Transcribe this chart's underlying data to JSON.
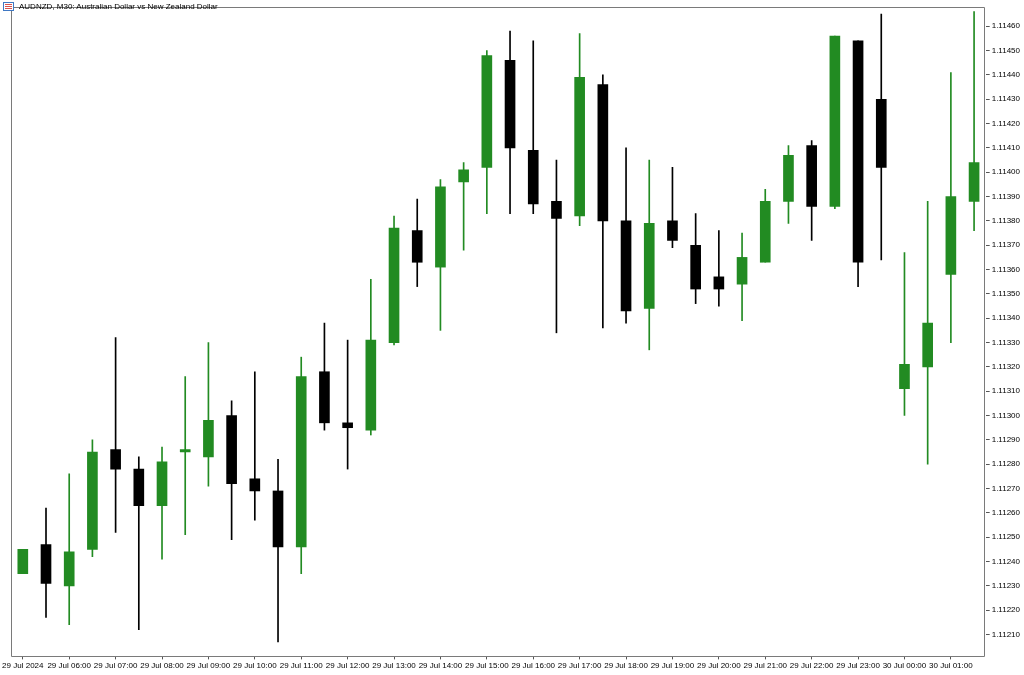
{
  "chart_data": {
    "type": "candlestick",
    "title": "AUDNZD, M30: Australian Dollar vs New Zealand Dollar",
    "categories": [
      "29 Jul 2024",
      null,
      "29 Jul 06:00",
      null,
      "29 Jul 07:00",
      null,
      "29 Jul 08:00",
      null,
      "29 Jul 09:00",
      null,
      "29 Jul 10:00",
      null,
      "29 Jul 11:00",
      null,
      "29 Jul 12:00",
      null,
      "29 Jul 13:00",
      null,
      "29 Jul 14:00",
      null,
      "29 Jul 15:00",
      null,
      "29 Jul 16:00",
      null,
      "29 Jul 17:00",
      null,
      "29 Jul 18:00",
      null,
      "29 Jul 19:00",
      null,
      "29 Jul 20:00",
      null,
      "29 Jul 21:00",
      null,
      "29 Jul 22:00",
      null,
      "29 Jul 23:00",
      null,
      "30 Jul 00:00",
      null,
      "30 Jul 01:00",
      null
    ],
    "ohlc": [
      [
        1.11235,
        1.11245,
        1.11235,
        1.11245
      ],
      [
        1.11247,
        1.11262,
        1.11217,
        1.11231
      ],
      [
        1.1123,
        1.11276,
        1.11214,
        1.11244
      ],
      [
        1.11245,
        1.1129,
        1.11242,
        1.11285
      ],
      [
        1.11286,
        1.11332,
        1.11252,
        1.11278
      ],
      [
        1.11278,
        1.11283,
        1.11212,
        1.11263
      ],
      [
        1.11263,
        1.11287,
        1.11241,
        1.11281
      ],
      [
        1.11285,
        1.11316,
        1.11251,
        1.11286
      ],
      [
        1.11283,
        1.1133,
        1.11271,
        1.11298
      ],
      [
        1.113,
        1.11306,
        1.11249,
        1.11272
      ],
      [
        1.11274,
        1.11318,
        1.11257,
        1.11269
      ],
      [
        1.11269,
        1.11282,
        1.11207,
        1.11246
      ],
      [
        1.11246,
        1.11324,
        1.11235,
        1.11316
      ],
      [
        1.11318,
        1.11338,
        1.11294,
        1.11297
      ],
      [
        1.11297,
        1.11331,
        1.11278,
        1.11295
      ],
      [
        1.11294,
        1.11356,
        1.11292,
        1.11331
      ],
      [
        1.1133,
        1.11382,
        1.11329,
        1.11377
      ],
      [
        1.11376,
        1.11389,
        1.11353,
        1.11363
      ],
      [
        1.11361,
        1.11397,
        1.11335,
        1.11394
      ],
      [
        1.11396,
        1.11404,
        1.11368,
        1.11401
      ],
      [
        1.11402,
        1.1145,
        1.11383,
        1.11448
      ],
      [
        1.11446,
        1.11458,
        1.11383,
        1.1141
      ],
      [
        1.11409,
        1.11454,
        1.11383,
        1.11387
      ],
      [
        1.11388,
        1.11405,
        1.11334,
        1.11381
      ],
      [
        1.11382,
        1.11457,
        1.11378,
        1.11439
      ],
      [
        1.11436,
        1.1144,
        1.11336,
        1.1138
      ],
      [
        1.1138,
        1.1141,
        1.11338,
        1.11343
      ],
      [
        1.11344,
        1.11405,
        1.11327,
        1.11379
      ],
      [
        1.1138,
        1.11402,
        1.11369,
        1.11372
      ],
      [
        1.1137,
        1.11383,
        1.11346,
        1.11352
      ],
      [
        1.11357,
        1.11376,
        1.11345,
        1.11352
      ],
      [
        1.11354,
        1.11375,
        1.11339,
        1.11365
      ],
      [
        1.11363,
        1.11393,
        1.11363,
        1.11388
      ],
      [
        1.11388,
        1.11411,
        1.11379,
        1.11407
      ],
      [
        1.11411,
        1.11413,
        1.11372,
        1.11386
      ],
      [
        1.11386,
        1.11456,
        1.11385,
        1.11456
      ],
      [
        1.11454,
        1.11454,
        1.11353,
        1.11363
      ],
      [
        1.1143,
        1.11465,
        1.11364,
        1.11402
      ],
      [
        1.11311,
        1.11367,
        1.113,
        1.11321
      ],
      [
        1.1132,
        1.11388,
        1.1128,
        1.11338
      ],
      [
        1.11358,
        1.11441,
        1.1133,
        1.1139
      ],
      [
        1.11388,
        1.11466,
        1.11376,
        1.11404
      ]
    ],
    "colors": [
      "#228b22",
      "#000000",
      "#228b22",
      "#228b22",
      "#000000",
      "#000000",
      "#228b22",
      "#228b22",
      "#228b22",
      "#000000",
      "#000000",
      "#000000",
      "#228b22",
      "#000000",
      "#000000",
      "#228b22",
      "#228b22",
      "#000000",
      "#228b22",
      "#228b22",
      "#228b22",
      "#000000",
      "#000000",
      "#000000",
      "#228b22",
      "#000000",
      "#000000",
      "#228b22",
      "#000000",
      "#000000",
      "#000000",
      "#228b22",
      "#228b22",
      "#228b22",
      "#000000",
      "#228b22",
      "#000000",
      "#000000",
      "#228b22",
      "#228b22",
      "#228b22",
      "#228b22"
    ],
    "ylim": [
      1.11201,
      1.11468
    ],
    "yticks": [
      {
        "value": 1.1121,
        "label": "1.11210"
      },
      {
        "value": 1.1122,
        "label": "1.11220"
      },
      {
        "value": 1.1123,
        "label": "1.11230"
      },
      {
        "value": 1.1124,
        "label": "1.11240"
      },
      {
        "value": 1.1125,
        "label": "1.11250"
      },
      {
        "value": 1.1126,
        "label": "1.11260"
      },
      {
        "value": 1.1127,
        "label": "1.11270"
      },
      {
        "value": 1.1128,
        "label": "1.11280"
      },
      {
        "value": 1.1129,
        "label": "1.11290"
      },
      {
        "value": 1.113,
        "label": "1.11300"
      },
      {
        "value": 1.1131,
        "label": "1.11310"
      },
      {
        "value": 1.1132,
        "label": "1.11320"
      },
      {
        "value": 1.1133,
        "label": "1.11330"
      },
      {
        "value": 1.1134,
        "label": "1.11340"
      },
      {
        "value": 1.1135,
        "label": "1.11350"
      },
      {
        "value": 1.1136,
        "label": "1.11360"
      },
      {
        "value": 1.1137,
        "label": "1.11370"
      },
      {
        "value": 1.1138,
        "label": "1.11380"
      },
      {
        "value": 1.1139,
        "label": "1.11390"
      },
      {
        "value": 1.114,
        "label": "1.11400"
      },
      {
        "value": 1.1141,
        "label": "1.11410"
      },
      {
        "value": 1.1142,
        "label": "1.11420"
      },
      {
        "value": 1.1143,
        "label": "1.11430"
      },
      {
        "value": 1.1144,
        "label": "1.11440"
      },
      {
        "value": 1.1145,
        "label": "1.11450"
      },
      {
        "value": 1.1146,
        "label": "1.11460"
      }
    ]
  }
}
